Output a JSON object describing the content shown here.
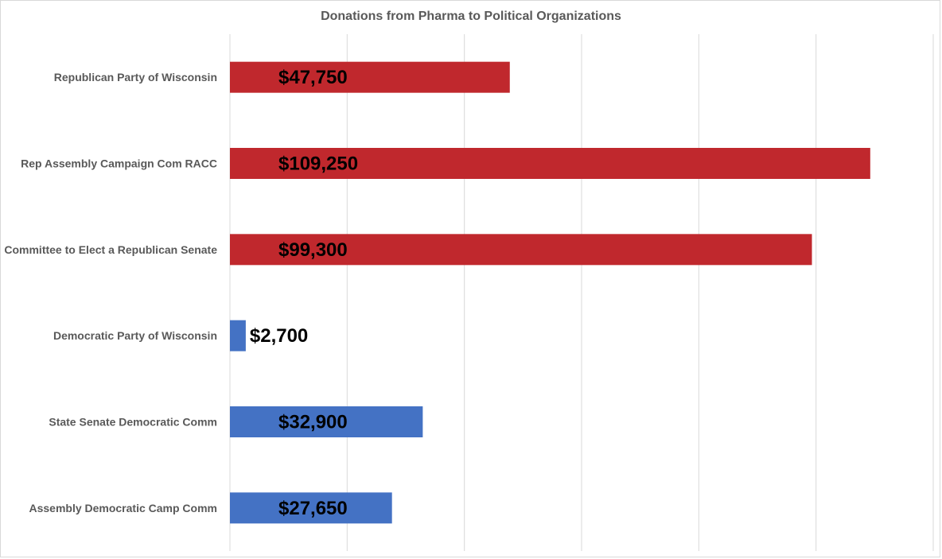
{
  "chart_data": {
    "type": "bar",
    "orientation": "horizontal",
    "title": "Donations from Pharma to Political Organizations",
    "xlabel": "",
    "ylabel": "",
    "xlim": [
      0,
      120000
    ],
    "grid": "vertical",
    "legend": "none",
    "categories": [
      "Republican Party of Wisconsin",
      "Rep Assembly Campaign Com RACC",
      "Committee to Elect a Republican Senate",
      "Democratic Party of Wisconsin",
      "State Senate Democratic Comm",
      "Assembly Democratic Camp Comm"
    ],
    "values": [
      47750,
      109250,
      99300,
      2700,
      32900,
      27650
    ],
    "data_labels": [
      "$47,750",
      "$109,250",
      "$99,300",
      "$2,700",
      "$32,900",
      "$27,650"
    ],
    "colors": [
      "#c0282d",
      "#c0282d",
      "#c0282d",
      "#4472c4",
      "#4472c4",
      "#4472c4"
    ]
  }
}
